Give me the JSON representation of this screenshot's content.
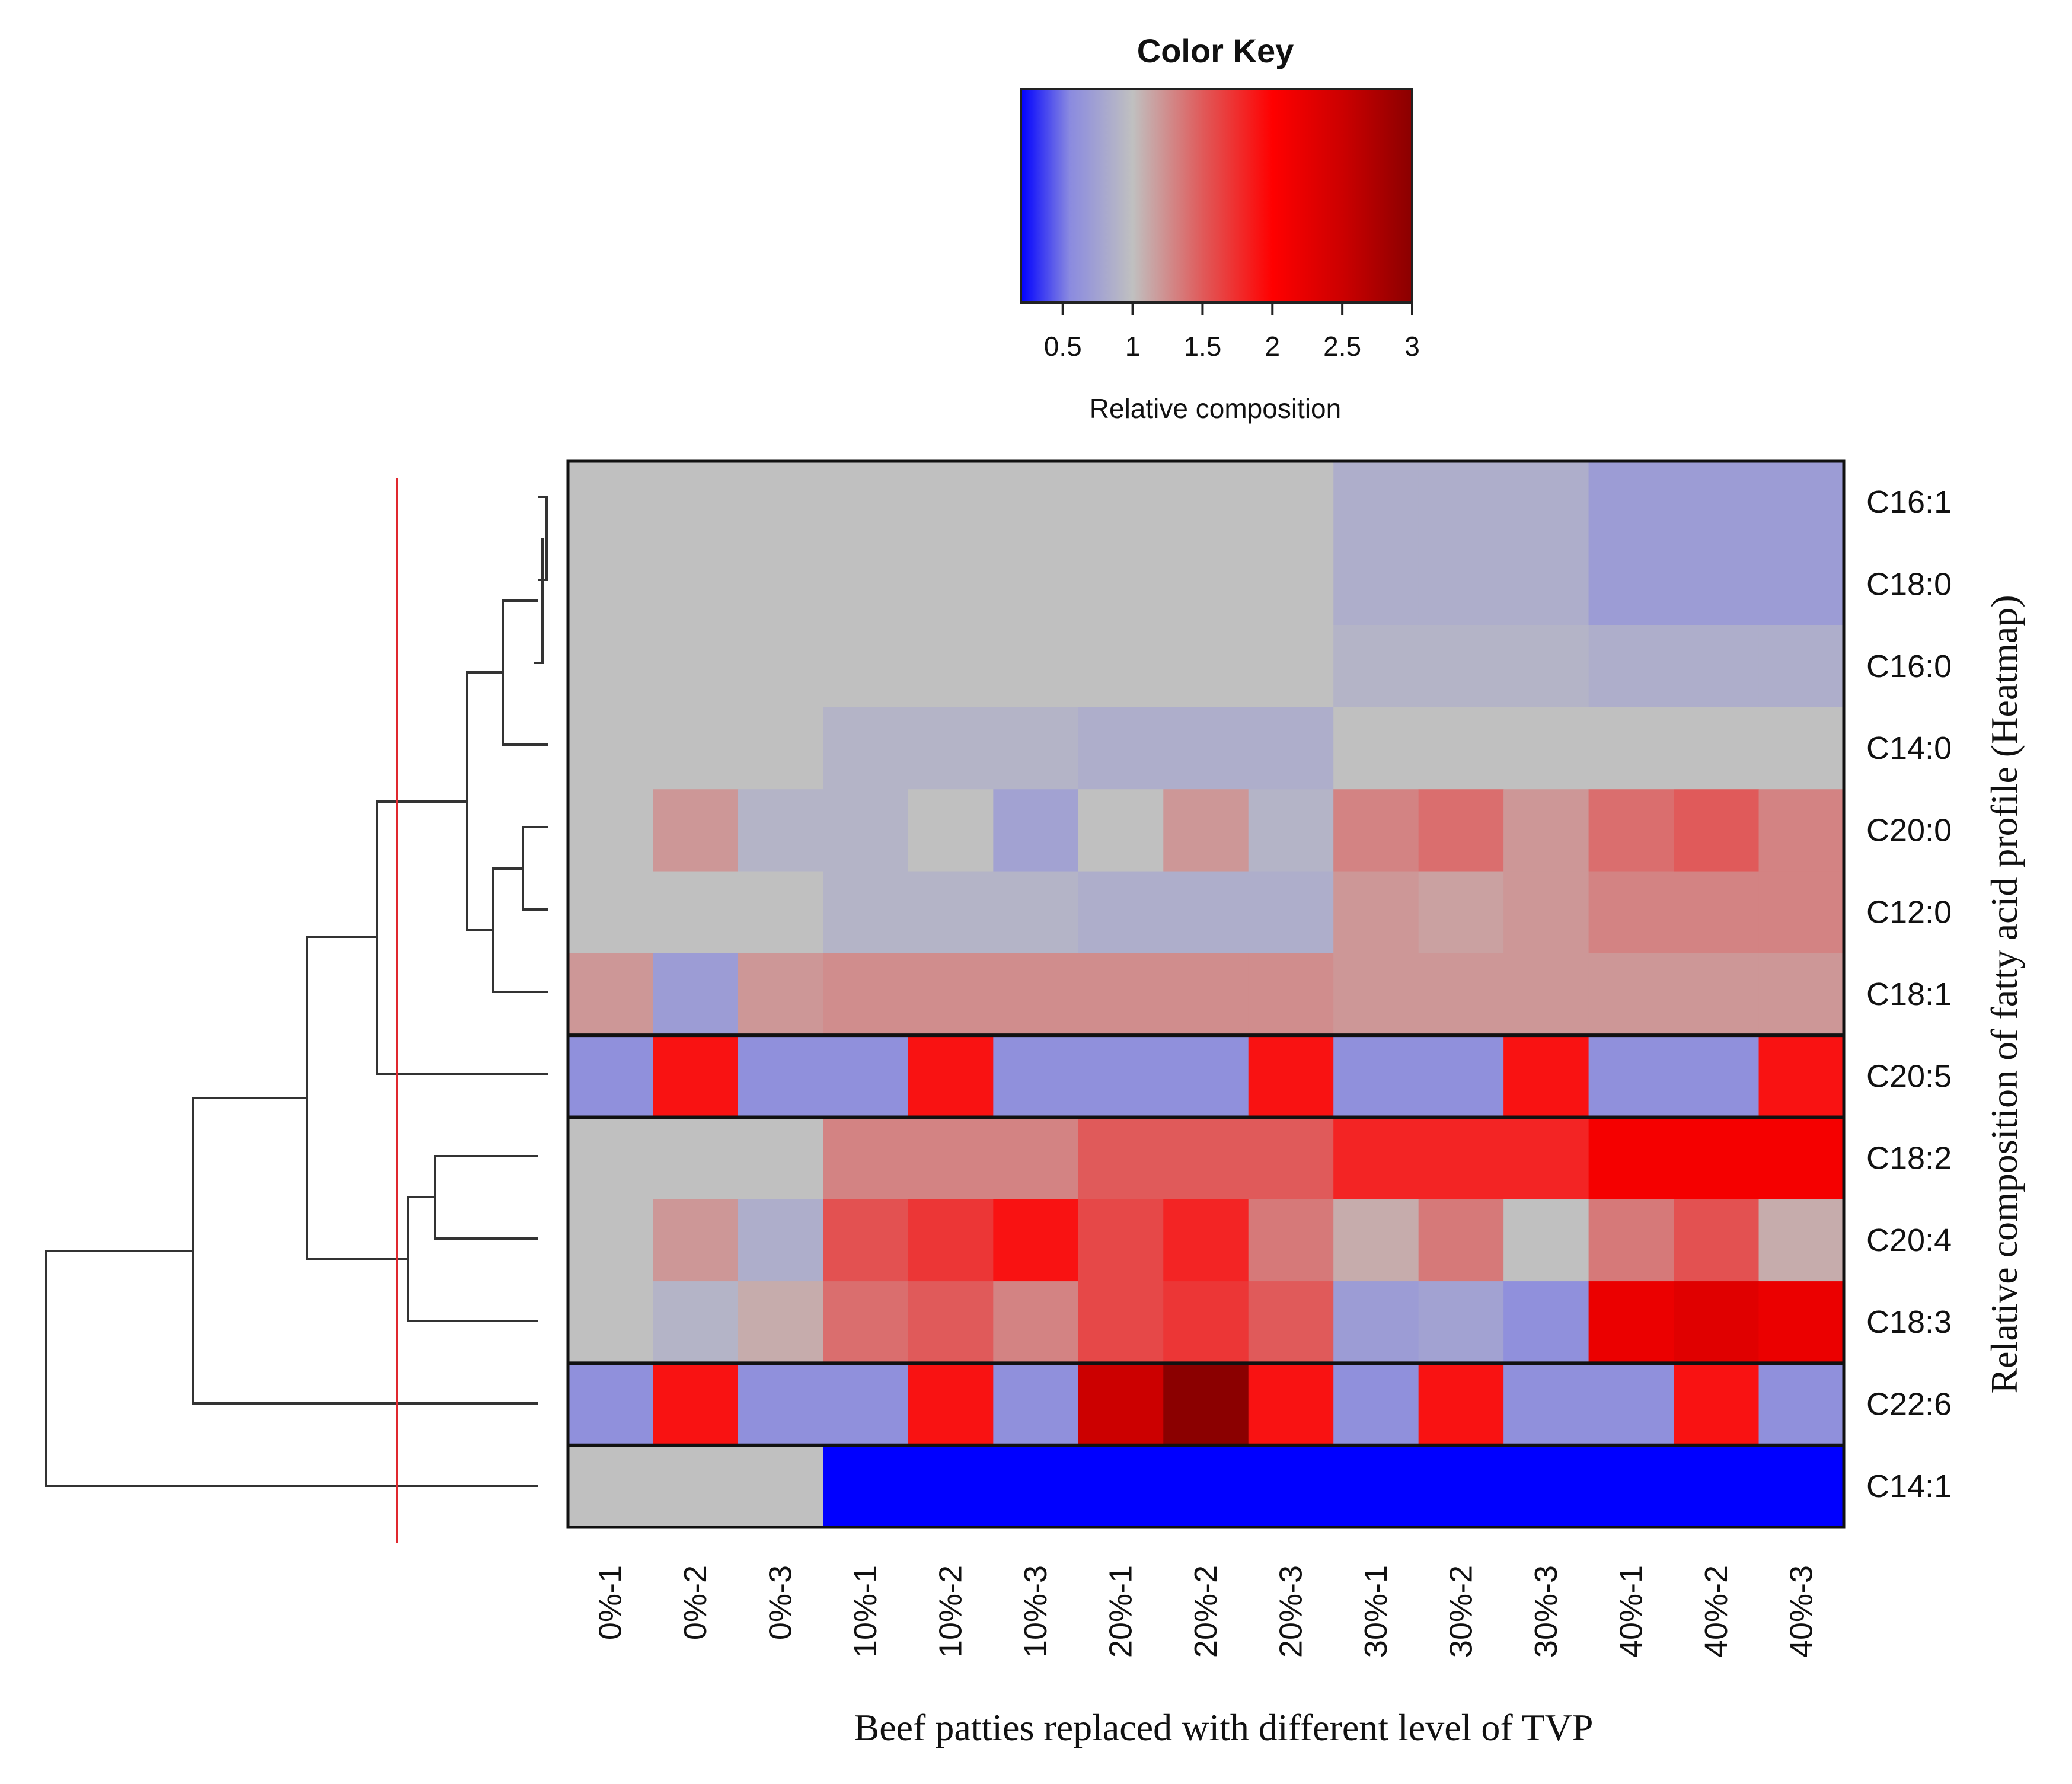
{
  "chart_data": {
    "type": "heatmap",
    "title": "",
    "xlabel": "Beef patties replaced with different level of TVP",
    "ylabel": "Relative composition of fatty acid profile (Heatmap)",
    "columns": [
      "0%-1",
      "0%-2",
      "0%-3",
      "10%-1",
      "10%-2",
      "10%-3",
      "20%-1",
      "20%-2",
      "20%-3",
      "30%-1",
      "30%-2",
      "30%-3",
      "40%-1",
      "40%-2",
      "40%-3"
    ],
    "rows": [
      "C16:1",
      "C18:0",
      "C16:0",
      "C14:0",
      "C20:0",
      "C12:0",
      "C18:1",
      "C20:5",
      "C18:2",
      "C20:4",
      "C18:3",
      "C22:6",
      "C14:1"
    ],
    "values": [
      [
        1.0,
        1.0,
        1.0,
        1.0,
        1.0,
        1.0,
        1.0,
        1.0,
        1.0,
        0.85,
        0.85,
        0.85,
        0.7,
        0.7,
        0.7
      ],
      [
        1.0,
        1.0,
        1.0,
        1.0,
        1.0,
        1.0,
        1.0,
        1.0,
        1.0,
        0.85,
        0.85,
        0.85,
        0.7,
        0.7,
        0.7
      ],
      [
        1.0,
        1.0,
        1.0,
        1.0,
        1.0,
        1.0,
        1.0,
        1.0,
        1.0,
        0.9,
        0.9,
        0.9,
        0.85,
        0.85,
        0.85
      ],
      [
        1.0,
        1.0,
        1.0,
        0.9,
        0.9,
        0.9,
        0.85,
        0.85,
        0.85,
        1.0,
        1.0,
        1.0,
        1.0,
        1.0,
        1.0
      ],
      [
        1.0,
        1.2,
        0.9,
        0.9,
        1.0,
        0.75,
        1.0,
        1.2,
        0.9,
        1.3,
        1.4,
        1.2,
        1.4,
        1.5,
        1.3
      ],
      [
        1.0,
        1.0,
        1.0,
        0.9,
        0.9,
        0.9,
        0.85,
        0.85,
        0.85,
        1.2,
        1.15,
        1.2,
        1.3,
        1.3,
        1.3
      ],
      [
        1.2,
        0.7,
        1.2,
        1.25,
        1.25,
        1.25,
        1.25,
        1.25,
        1.25,
        1.2,
        1.2,
        1.2,
        1.2,
        1.2,
        1.2
      ],
      [
        0.6,
        1.9,
        0.6,
        0.6,
        1.9,
        0.6,
        0.6,
        0.6,
        1.9,
        0.6,
        0.6,
        1.9,
        0.6,
        0.6,
        1.9
      ],
      [
        1.0,
        1.0,
        1.0,
        1.3,
        1.3,
        1.3,
        1.5,
        1.5,
        1.5,
        1.8,
        1.8,
        1.8,
        2.1,
        2.1,
        2.1
      ],
      [
        1.0,
        1.2,
        0.85,
        1.55,
        1.7,
        1.9,
        1.6,
        1.8,
        1.35,
        1.1,
        1.35,
        1.0,
        1.35,
        1.55,
        1.1
      ],
      [
        1.0,
        0.9,
        1.1,
        1.4,
        1.5,
        1.3,
        1.6,
        1.7,
        1.5,
        0.7,
        0.75,
        0.6,
        2.2,
        2.3,
        2.2
      ],
      [
        0.6,
        1.9,
        0.6,
        0.6,
        1.9,
        0.6,
        2.5,
        3.0,
        1.9,
        0.6,
        1.9,
        0.6,
        0.6,
        1.9,
        0.6
      ],
      [
        1.0,
        1.0,
        1.0,
        0.15,
        0.15,
        0.15,
        0.15,
        0.15,
        0.15,
        0.15,
        0.15,
        0.15,
        0.15,
        0.15,
        0.15
      ]
    ],
    "row_groups": [
      [
        "C16:1",
        "C18:0",
        "C16:0",
        "C14:0",
        "C20:0",
        "C12:0",
        "C18:1"
      ],
      [
        "C20:5"
      ],
      [
        "C18:2",
        "C20:4",
        "C18:3"
      ],
      [
        "C22:6"
      ],
      [
        "C14:1"
      ]
    ],
    "color_key": {
      "title": "Color Key",
      "label": "Relative composition",
      "ticks": [
        "0.5",
        "1",
        "1.5",
        "2",
        "2.5",
        "3"
      ],
      "tick_values": [
        0.5,
        1,
        1.5,
        2,
        2.5,
        3
      ],
      "range": [
        0.2,
        3.0
      ],
      "stops": [
        {
          "value": 0.2,
          "color": "#0000ff"
        },
        {
          "value": 0.55,
          "color": "#8a8ae0"
        },
        {
          "value": 1.0,
          "color": "#c0c0c0"
        },
        {
          "value": 1.5,
          "color": "#e05a5a"
        },
        {
          "value": 2.0,
          "color": "#ff0000"
        },
        {
          "value": 2.5,
          "color": "#cc0000"
        },
        {
          "value": 3.0,
          "color": "#8b0000"
        }
      ]
    },
    "cut_line_color": "#e0282e"
  }
}
